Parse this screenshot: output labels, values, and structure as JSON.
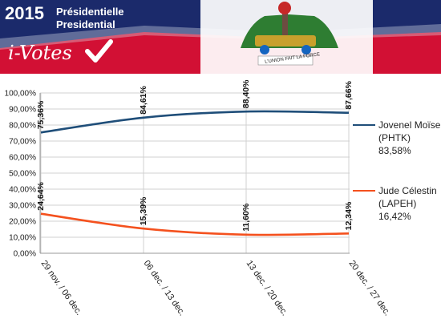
{
  "header": {
    "year": "2015",
    "line1": "Présidentielle",
    "line2": "Presidential",
    "brand": "i-Votes",
    "motto": "L'UNION FAIT LA FORCE"
  },
  "colors": {
    "banner_blue": "#1b2a6b",
    "banner_red": "#d21034",
    "series1": "#1f4e79",
    "series2": "#f4511e"
  },
  "chart_data": {
    "type": "line",
    "categories": [
      "29 nov. / 06 dec.",
      "06 dec. / 13 dec.",
      "13 dec. / 20 dec.",
      "20 dec. / 27 dec."
    ],
    "ylim": [
      0,
      100
    ],
    "yticks": [
      "0,00%",
      "10,00%",
      "20,00%",
      "30,00%",
      "40,00%",
      "50,00%",
      "60,00%",
      "70,00%",
      "80,00%",
      "90,00%",
      "100,00%"
    ],
    "grid": true,
    "legend_position": "right",
    "series": [
      {
        "name": "Jovenel Moïse",
        "party": "(PHTK)",
        "average": "83,58%",
        "values": [
          75.36,
          84.61,
          88.4,
          87.66
        ],
        "labels": [
          "75,36%",
          "84,61%",
          "88,40%",
          "87,66%"
        ]
      },
      {
        "name": "Jude Célestin",
        "party": "(LAPEH)",
        "average": "16,42%",
        "values": [
          24.64,
          15.39,
          11.6,
          12.34
        ],
        "labels": [
          "24,64%",
          "15,39%",
          "11,60%",
          "12,34%"
        ]
      }
    ]
  }
}
